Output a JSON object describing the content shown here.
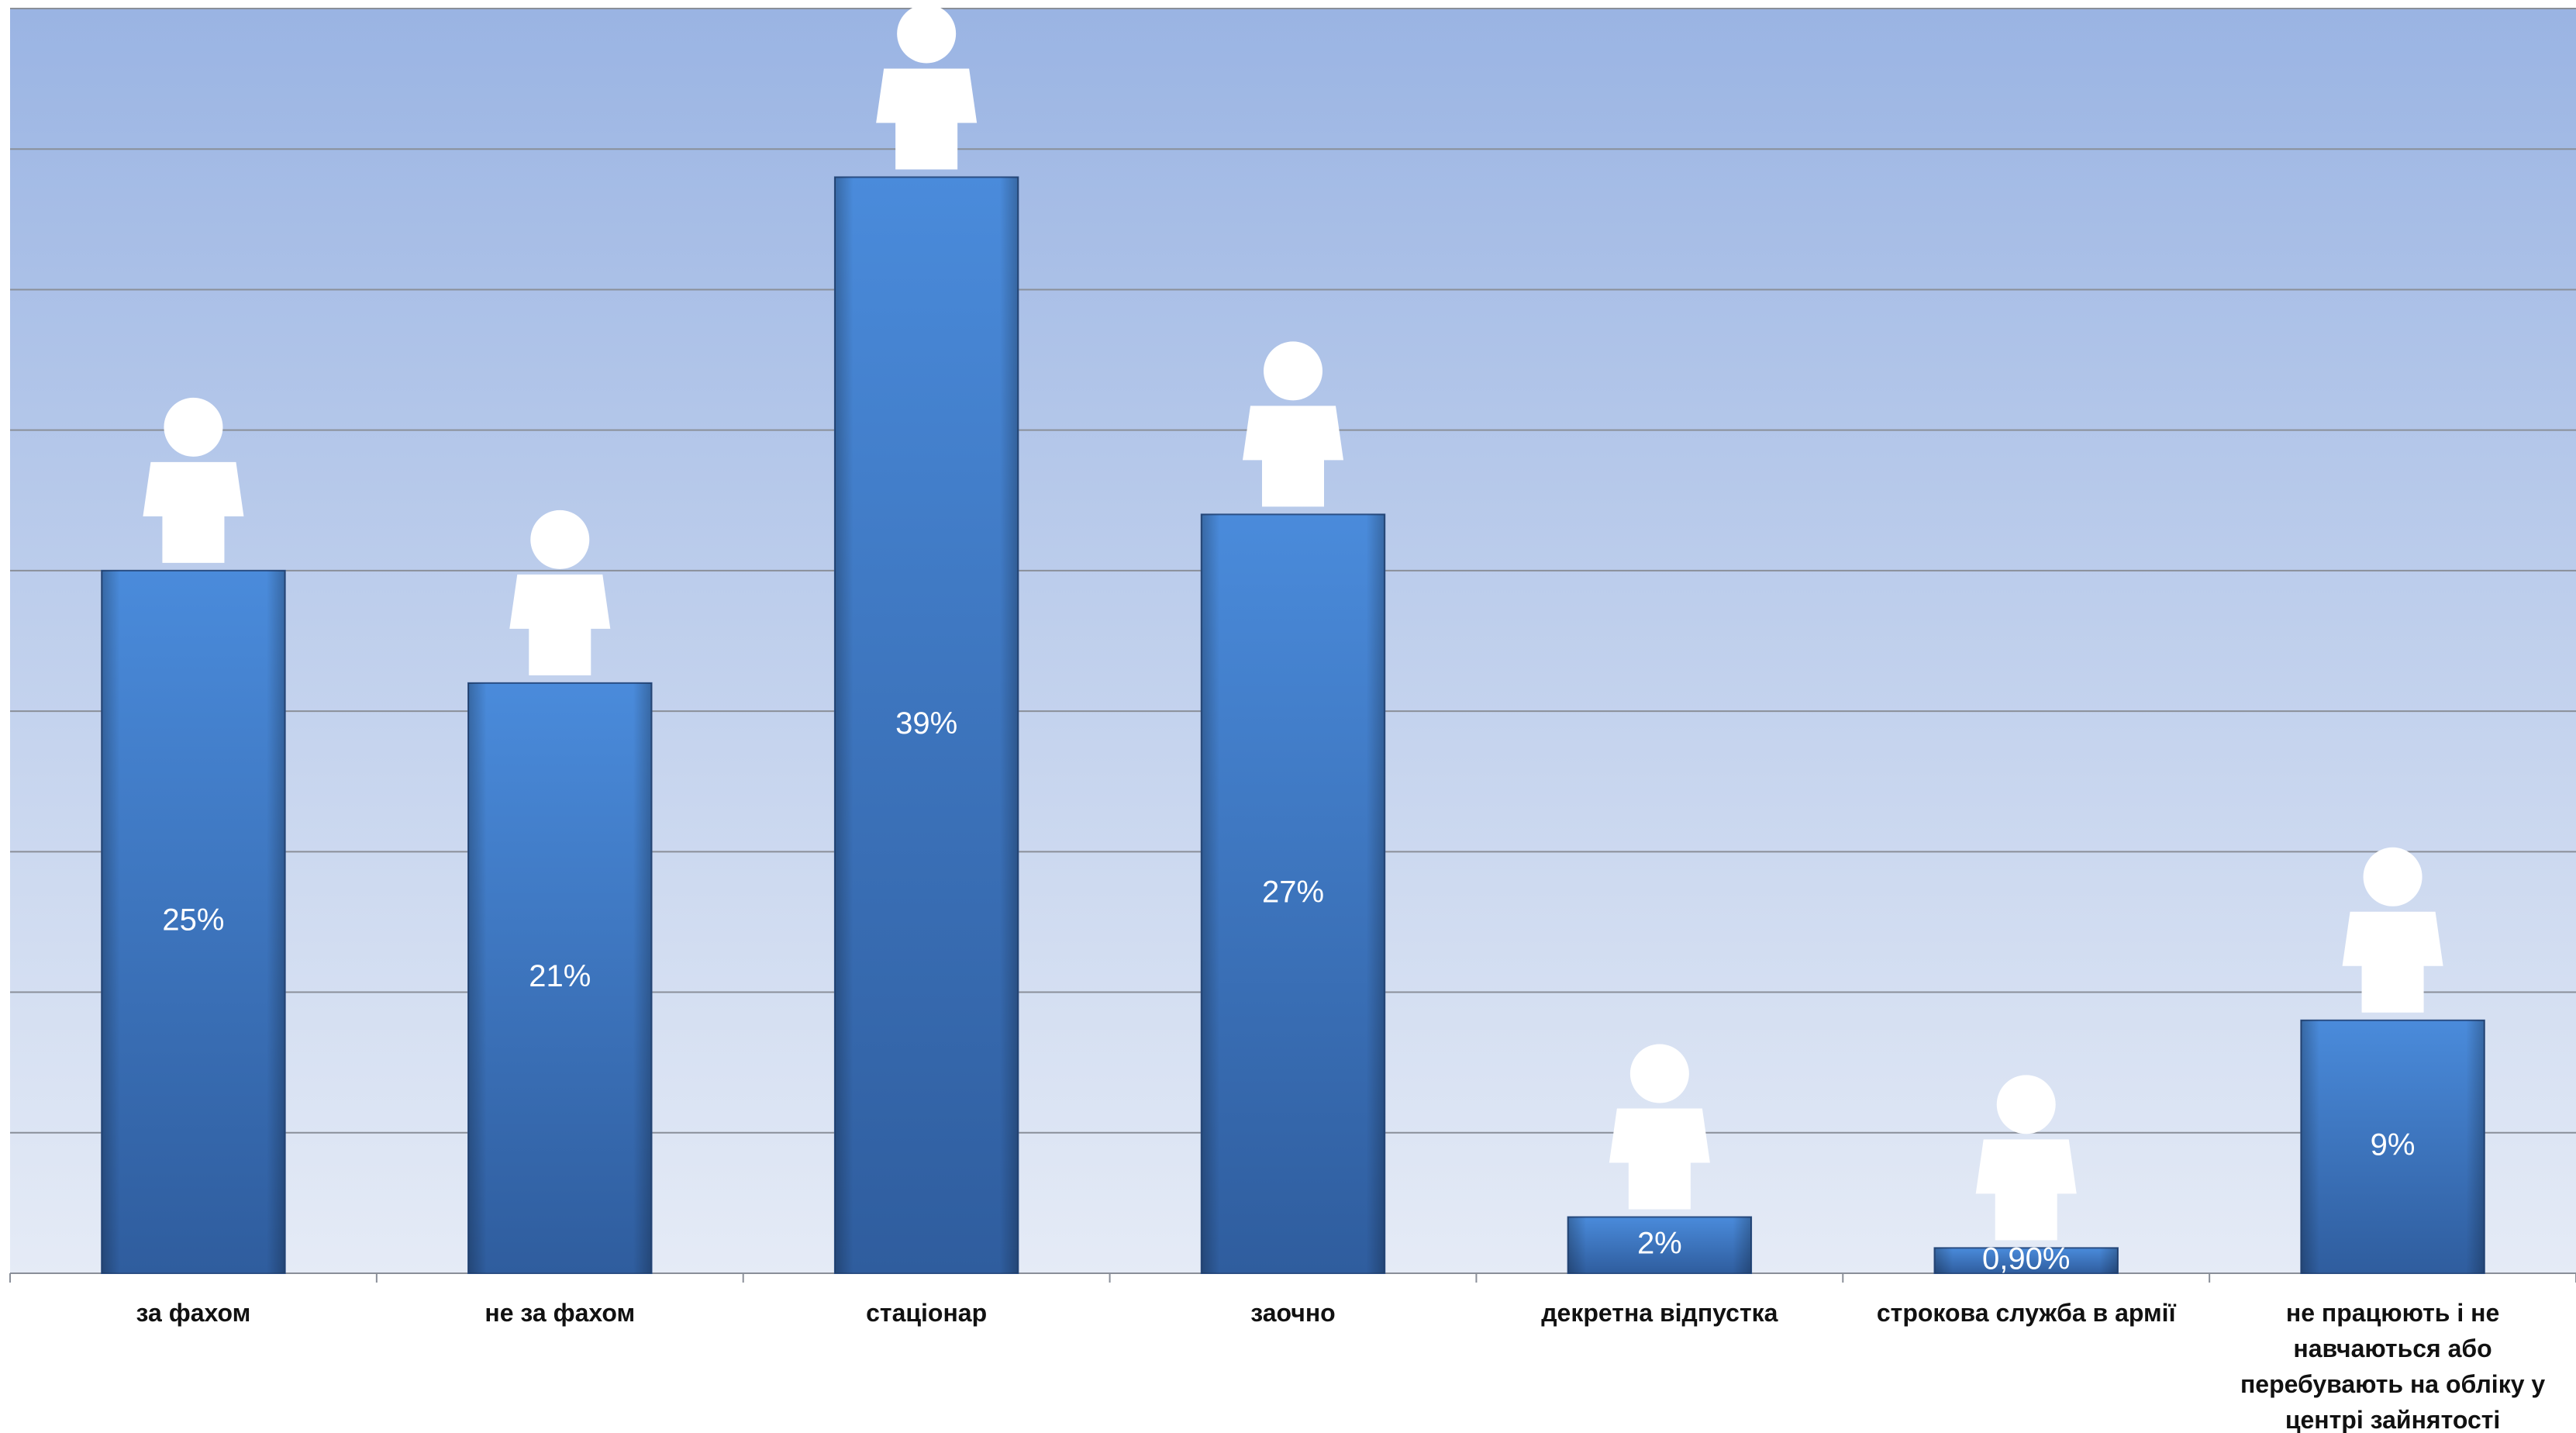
{
  "chart_data": {
    "type": "bar",
    "categories": [
      "за фахом",
      "не за фахом",
      "стаціонар",
      "заочно",
      "декретна відпустка",
      "строкова служба в армії",
      "не працюють і не навчаються або перебувають на обліку у центрі зайнятості"
    ],
    "values": [
      25,
      21,
      39,
      27,
      2,
      0.9,
      9
    ],
    "value_labels": [
      "25%",
      "21%",
      "39%",
      "27%",
      "2%",
      "0,90%",
      "9%"
    ],
    "color": "#3f7ccc",
    "ylim": [
      0,
      45
    ],
    "yticks": [
      0,
      5,
      10,
      15,
      20,
      25,
      30,
      35,
      40,
      45
    ],
    "grid": true
  }
}
